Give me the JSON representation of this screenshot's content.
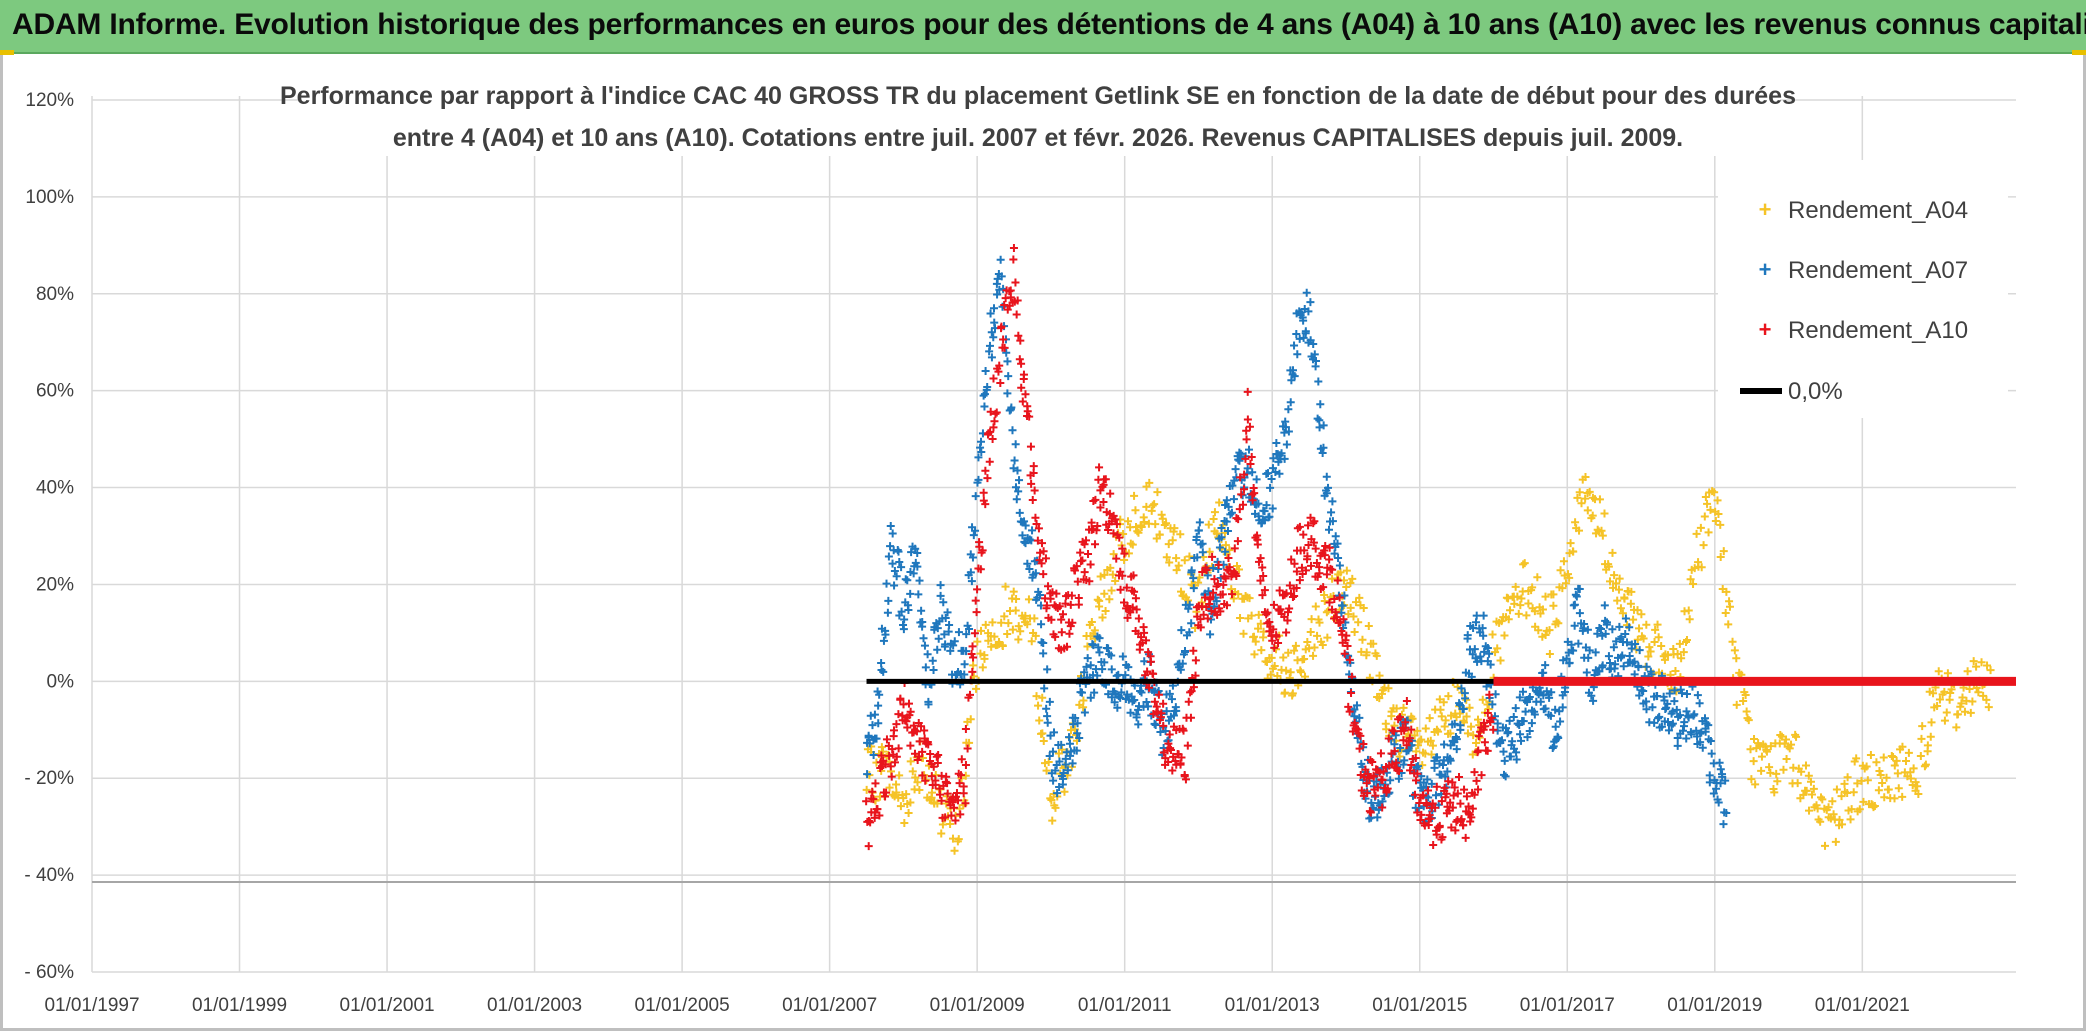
{
  "banner": {
    "text": "ADAM Informe. Evolution historique des performances en euros pour des détentions de 4 ans (A04) à 10 ans (A10) avec les revenus connus capitalisés"
  },
  "colors": {
    "banner": "#7dc97f",
    "A04": "#f5c327",
    "A07": "#1f77bd",
    "A10": "#e8141c",
    "zero": "#000000",
    "zero_late": "#e8141c",
    "grid": "#d9d9d9"
  },
  "chart_data": {
    "type": "scatter",
    "title_lines": [
      "Performance  par rapport à l'indice CAC 40 GROSS TR  du placement Getlink SE en fonction de la date de début pour des durées",
      "entre 4 (A04) et 10 ans (A10). Cotations entre juil. 2007 et févr. 2026. Revenus CAPITALISES depuis juil. 2009."
    ],
    "x_ticks": [
      "01/01/1997",
      "01/01/1999",
      "01/01/2001",
      "01/01/2003",
      "01/01/2005",
      "01/01/2007",
      "01/01/2009",
      "01/01/2011",
      "01/01/2013",
      "01/01/2015",
      "01/01/2017",
      "01/01/2019",
      "01/01/2021"
    ],
    "xlim": [
      "1997-01-01",
      "2023-02-01"
    ],
    "y_ticks": [
      "120%",
      "100%",
      "80%",
      "60%",
      "40%",
      "20%",
      "0%",
      "- 20%",
      "- 40%",
      "- 60%"
    ],
    "ylim": [
      -60,
      120
    ],
    "y_unit": "%",
    "grid": true,
    "legend_position": "top-right",
    "series": [
      {
        "name": "Rendement_A04",
        "marker": "+",
        "x": [
          "2007-07",
          "2007-10",
          "2008-01",
          "2008-04",
          "2008-07",
          "2008-10",
          "2009-01",
          "2009-04",
          "2009-07",
          "2009-10",
          "2010-01",
          "2010-04",
          "2010-07",
          "2010-10",
          "2011-01",
          "2011-04",
          "2011-07",
          "2011-10",
          "2012-01",
          "2012-04",
          "2012-07",
          "2012-10",
          "2013-01",
          "2013-04",
          "2013-07",
          "2013-10",
          "2014-01",
          "2014-04",
          "2014-07",
          "2014-10",
          "2015-01",
          "2015-04",
          "2015-07",
          "2015-10",
          "2016-01",
          "2016-04",
          "2016-07",
          "2016-10",
          "2017-01",
          "2017-04",
          "2017-07",
          "2017-10",
          "2018-01",
          "2018-04",
          "2018-07",
          "2018-10",
          "2019-01",
          "2019-04",
          "2019-07",
          "2019-10",
          "2020-01",
          "2020-04",
          "2020-07",
          "2020-10",
          "2021-01",
          "2021-04",
          "2021-07",
          "2021-10",
          "2022-01",
          "2022-04",
          "2022-07",
          "2022-10"
        ],
        "y": [
          -20,
          -18,
          -25,
          -15,
          -28,
          -30,
          5,
          12,
          15,
          10,
          -25,
          -15,
          5,
          20,
          30,
          38,
          32,
          25,
          15,
          35,
          20,
          10,
          5,
          2,
          8,
          15,
          20,
          10,
          -5,
          -10,
          -15,
          -10,
          -5,
          -12,
          5,
          15,
          20,
          10,
          25,
          40,
          30,
          15,
          10,
          5,
          0,
          25,
          40,
          5,
          -15,
          -18,
          -15,
          -20,
          -32,
          -25,
          -20,
          -22,
          -18,
          -20,
          0,
          -5,
          0,
          -2
        ]
      },
      {
        "name": "Rendement_A07",
        "marker": "+",
        "x": [
          "2007-07",
          "2007-09",
          "2007-11",
          "2008-01",
          "2008-03",
          "2008-05",
          "2008-07",
          "2008-09",
          "2008-11",
          "2009-01",
          "2009-03",
          "2009-05",
          "2009-07",
          "2009-09",
          "2009-11",
          "2010-01",
          "2010-03",
          "2010-05",
          "2010-07",
          "2010-09",
          "2010-11",
          "2011-01",
          "2011-03",
          "2011-05",
          "2011-07",
          "2011-09",
          "2011-11",
          "2012-01",
          "2012-03",
          "2012-05",
          "2012-07",
          "2012-09",
          "2012-11",
          "2013-01",
          "2013-03",
          "2013-05",
          "2013-07",
          "2013-09",
          "2013-11",
          "2014-01",
          "2014-03",
          "2014-05",
          "2014-07",
          "2014-09",
          "2014-11",
          "2015-01",
          "2015-03",
          "2015-05",
          "2015-07",
          "2015-09",
          "2015-11",
          "2016-01",
          "2016-03",
          "2016-05",
          "2016-07",
          "2016-09",
          "2016-11",
          "2017-01",
          "2017-03",
          "2017-05",
          "2017-07",
          "2017-09",
          "2017-11",
          "2018-01",
          "2018-03",
          "2018-05",
          "2018-07",
          "2018-09",
          "2018-11",
          "2019-01",
          "2019-03"
        ],
        "y": [
          -15,
          -5,
          30,
          15,
          25,
          0,
          15,
          5,
          5,
          40,
          70,
          85,
          45,
          30,
          20,
          -15,
          -20,
          -10,
          0,
          5,
          0,
          0,
          -5,
          0,
          -10,
          -5,
          10,
          30,
          15,
          30,
          40,
          45,
          35,
          40,
          50,
          70,
          75,
          50,
          30,
          10,
          -10,
          -25,
          -20,
          -15,
          -12,
          -25,
          -22,
          -18,
          -10,
          5,
          10,
          -5,
          -15,
          -10,
          -5,
          0,
          -10,
          5,
          15,
          0,
          10,
          5,
          10,
          0,
          -5,
          -3,
          -8,
          -5,
          -10,
          -20,
          -25
        ]
      },
      {
        "name": "Rendement_A10",
        "marker": "+",
        "x": [
          "2007-07",
          "2007-09",
          "2007-11",
          "2008-01",
          "2008-03",
          "2008-05",
          "2008-07",
          "2008-09",
          "2008-11",
          "2009-01",
          "2009-03",
          "2009-05",
          "2009-07",
          "2009-09",
          "2009-11",
          "2010-01",
          "2010-03",
          "2010-05",
          "2010-07",
          "2010-09",
          "2010-11",
          "2011-01",
          "2011-03",
          "2011-05",
          "2011-07",
          "2011-09",
          "2011-11",
          "2012-01",
          "2012-03",
          "2012-05",
          "2012-07",
          "2012-09",
          "2012-11",
          "2013-01",
          "2013-03",
          "2013-05",
          "2013-07",
          "2013-09",
          "2013-11",
          "2014-01",
          "2014-03",
          "2014-05",
          "2014-07",
          "2014-09",
          "2014-11",
          "2015-01",
          "2015-03",
          "2015-05",
          "2015-07",
          "2015-09",
          "2015-11",
          "2016-01"
        ],
        "y": [
          -30,
          -22,
          -15,
          -5,
          -10,
          -18,
          -22,
          -25,
          -20,
          20,
          50,
          70,
          85,
          55,
          30,
          15,
          10,
          20,
          25,
          40,
          35,
          20,
          15,
          0,
          -10,
          -15,
          -15,
          15,
          20,
          18,
          25,
          55,
          20,
          10,
          15,
          25,
          30,
          25,
          20,
          5,
          -15,
          -22,
          -20,
          -15,
          -10,
          -25,
          -28,
          -27,
          -25,
          -28,
          -15,
          -5
        ]
      }
    ],
    "reference_lines": [
      {
        "name": "0,0%",
        "y": 0,
        "x_start": "2007-07",
        "x_end": "2016-01",
        "color": "#000000"
      },
      {
        "name": "",
        "y": 0,
        "x_start": "2016-01",
        "x_end": "2023-02",
        "color": "#e8141c"
      }
    ]
  }
}
